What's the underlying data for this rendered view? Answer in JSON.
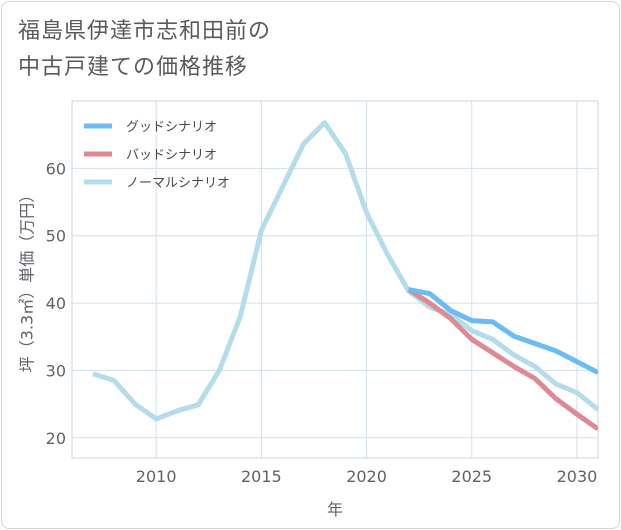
{
  "title_lines": [
    "福島県伊達市志和田前の",
    "中古戸建ての価格推移"
  ],
  "chart_data": {
    "type": "line",
    "xlabel": "年",
    "ylabel": "坪（3.3㎡）単価（万円）",
    "xlim": [
      2006,
      2031
    ],
    "ylim": [
      17,
      70
    ],
    "xticks": [
      2010,
      2015,
      2020,
      2025,
      2030
    ],
    "yticks": [
      20,
      30,
      40,
      50,
      60
    ],
    "grid": true,
    "legend_position": "top-left",
    "series": [
      {
        "name": "グッドシナリオ",
        "color": "#6bbcf3",
        "x": [
          2022,
          2023,
          2024,
          2025,
          2026,
          2027,
          2028,
          2029,
          2030,
          2031
        ],
        "y": [
          42.0,
          41.4,
          38.9,
          37.4,
          37.2,
          35.1,
          34.0,
          32.9,
          31.3,
          29.7
        ]
      },
      {
        "name": "バッドシナリオ",
        "color": "#de8a94",
        "x": [
          2022,
          2023,
          2024,
          2025,
          2026,
          2027,
          2028,
          2029,
          2030,
          2031
        ],
        "y": [
          42.0,
          40.0,
          37.7,
          34.6,
          32.6,
          30.6,
          28.8,
          25.8,
          23.5,
          21.3
        ]
      },
      {
        "name": "ノーマルシナリオ",
        "color": "#b5dcea",
        "x": [
          2007,
          2008,
          2009,
          2010,
          2011,
          2012,
          2013,
          2014,
          2015,
          2016,
          2017,
          2018,
          2019,
          2020,
          2021,
          2022,
          2023,
          2024,
          2025,
          2026,
          2027,
          2028,
          2029,
          2030,
          2031
        ],
        "y": [
          29.5,
          28.5,
          25.0,
          22.8,
          24.0,
          24.9,
          30.0,
          38.0,
          50.8,
          57.2,
          63.6,
          66.8,
          62.2,
          53.4,
          47.2,
          41.8,
          39.4,
          38.3,
          35.9,
          34.6,
          32.3,
          30.6,
          28.0,
          26.7,
          24.2
        ]
      }
    ]
  }
}
